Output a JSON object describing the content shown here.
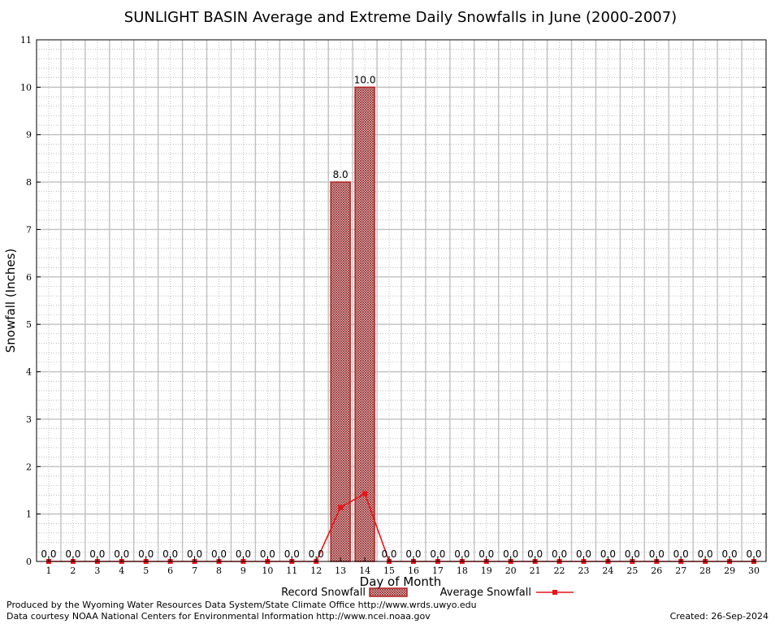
{
  "chart_data": {
    "type": "bar",
    "title": "SUNLIGHT BASIN Average and Extreme Daily Snowfalls in June (2000-2007)",
    "xlabel": "Day of Month",
    "ylabel": "Snowfall (Inches)",
    "ylim": [
      0,
      11
    ],
    "yticks": [
      "0",
      "1",
      "2",
      "3",
      "4",
      "5",
      "6",
      "7",
      "8",
      "9",
      "10",
      "11"
    ],
    "categories": [
      "1",
      "2",
      "3",
      "4",
      "5",
      "6",
      "7",
      "8",
      "9",
      "10",
      "11",
      "12",
      "13",
      "14",
      "15",
      "16",
      "17",
      "18",
      "19",
      "20",
      "21",
      "22",
      "23",
      "24",
      "25",
      "26",
      "27",
      "28",
      "29",
      "30"
    ],
    "grid": true,
    "legend_position": "bottom",
    "series": [
      {
        "name": "Record Snowfall",
        "type": "bar",
        "color": "#b22222",
        "values": [
          0,
          0,
          0,
          0,
          0,
          0,
          0,
          0,
          0,
          0,
          0,
          0,
          8.0,
          10.0,
          0,
          0,
          0,
          0,
          0,
          0,
          0,
          0,
          0,
          0,
          0,
          0,
          0,
          0,
          0,
          0
        ],
        "labels": [
          "0.0",
          "0.0",
          "0.0",
          "0.0",
          "0.0",
          "0.0",
          "0.0",
          "0.0",
          "0.0",
          "0.0",
          "0.0",
          "0.0",
          "8.0",
          "10.0",
          "0.0",
          "0.0",
          "0.0",
          "0.0",
          "0.0",
          "0.0",
          "0.0",
          "0.0",
          "0.0",
          "0.0",
          "0.0",
          "0.0",
          "0.0",
          "0.0",
          "0.0",
          "0.0"
        ]
      },
      {
        "name": "Average Snowfall",
        "type": "line",
        "color": "#e8141a",
        "values": [
          0,
          0,
          0,
          0,
          0,
          0,
          0,
          0,
          0,
          0,
          0,
          0,
          1.14,
          1.43,
          0,
          0,
          0,
          0,
          0,
          0,
          0,
          0,
          0,
          0,
          0,
          0,
          0,
          0,
          0,
          0
        ]
      }
    ]
  },
  "footer": {
    "line1": "Produced by the Wyoming Water Resources Data System/State Climate Office http://www.wrds.uwyo.edu",
    "line2": "Data courtesy NOAA National Centers for Environmental Information http://www.ncei.noaa.gov",
    "created": "Created:  26-Sep-2024"
  }
}
